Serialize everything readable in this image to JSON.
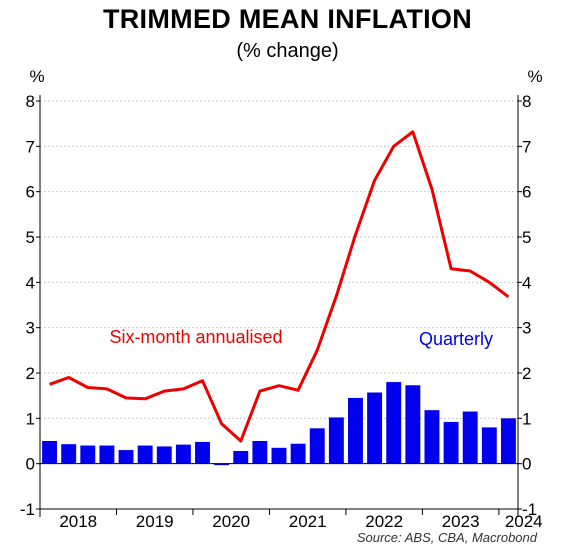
{
  "chart_data": {
    "type": "bar+line",
    "title": "TRIMMED MEAN INFLATION",
    "subtitle": "(% change)",
    "ylabel_left": "%",
    "ylabel_right": "%",
    "ylim": [
      -1,
      8
    ],
    "yticks": [
      -1,
      0,
      1,
      2,
      3,
      4,
      5,
      6,
      7,
      8
    ],
    "grid": true,
    "x_tick_labels": [
      "2018",
      "2019",
      "2020",
      "2021",
      "2022",
      "2023",
      "2024"
    ],
    "colors": {
      "bar": "#0000ee",
      "line": "#ee0000",
      "grid": "#bbbbbb"
    },
    "series": [
      {
        "name": "Quarterly",
        "type": "bar",
        "values": [
          0.5,
          0.43,
          0.4,
          0.4,
          0.3,
          0.4,
          0.38,
          0.42,
          0.48,
          -0.03,
          0.28,
          0.5,
          0.35,
          0.44,
          0.78,
          1.02,
          1.45,
          1.57,
          1.8,
          1.73,
          1.18,
          0.92,
          1.15,
          0.8,
          1.0
        ]
      },
      {
        "name": "Six-month annualised",
        "type": "line",
        "values": [
          1.75,
          1.9,
          1.68,
          1.65,
          1.45,
          1.43,
          1.6,
          1.65,
          1.83,
          0.88,
          0.5,
          1.6,
          1.72,
          1.62,
          2.5,
          3.7,
          5.05,
          6.25,
          7.0,
          7.32,
          6.05,
          4.3,
          4.25,
          4.0,
          3.68
        ]
      }
    ],
    "source": "Source: ABS, CBA, Macrobond"
  }
}
